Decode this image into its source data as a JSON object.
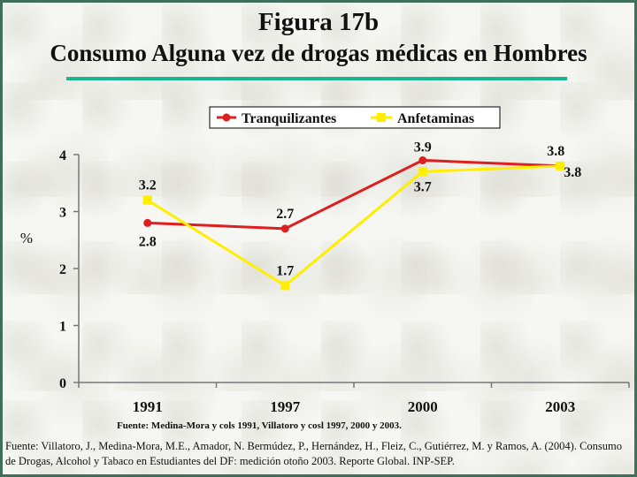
{
  "title": "Figura 17b",
  "subtitle": "Consumo Alguna vez de drogas médicas en Hombres",
  "chart_data": {
    "type": "line",
    "categories": [
      "1991",
      "1997",
      "2000",
      "2003"
    ],
    "series": [
      {
        "name": "Tranquilizantes",
        "values": [
          2.8,
          2.7,
          3.9,
          3.8
        ],
        "color": "#dd1f1f",
        "marker": "circle"
      },
      {
        "name": "Anfetaminas",
        "values": [
          3.2,
          1.7,
          3.7,
          3.8
        ],
        "color": "#ffee00",
        "marker": "square"
      }
    ],
    "ylabel": "%",
    "ylim": [
      0,
      4
    ],
    "yticks": [
      "0",
      "1",
      "2",
      "3",
      "4"
    ],
    "legend_position": "top-right",
    "grid": false,
    "note": "Fuente: Medina-Mora y cols 1991, Villatoro y cosl 1997, 2000 y 2003."
  },
  "source_text": "Fuente: Villatoro, J., Medina-Mora, M.E., Amador, N. Bermúdez, P., Hernández, H., Fleiz, C., Gutiérrez, M. y Ramos, A. (2004). Consumo de Drogas, Alcohol y Tabaco en Estudiantes del DF: medición otoño 2003. Reporte Global. INP-SEP."
}
